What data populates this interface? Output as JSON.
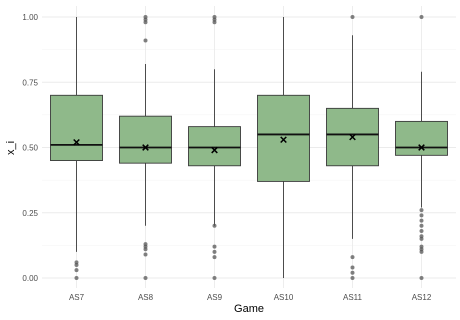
{
  "chart_data": {
    "type": "boxplot",
    "title": "",
    "xlabel": "Game",
    "ylabel": "x_i",
    "ylim": [
      0,
      1
    ],
    "yticks": [
      "0.00",
      "0.25",
      "0.50",
      "0.75",
      "1.00"
    ],
    "categories": [
      "AS7",
      "AS8",
      "AS9",
      "AS10",
      "AS11",
      "AS12"
    ],
    "grid": true,
    "colors": {
      "box_fill": "#8fb98a",
      "box_stroke": "#3a3a3a",
      "median": "#111111",
      "outlier": "#555555",
      "grid": "#ebebeb"
    },
    "boxes": [
      {
        "category": "AS7",
        "min": 0.1,
        "q1": 0.45,
        "median": 0.51,
        "q3": 0.7,
        "max": 1.0,
        "mean": 0.52,
        "outliers": [
          0.0,
          0.03,
          0.05,
          0.06
        ]
      },
      {
        "category": "AS8",
        "min": 0.2,
        "q1": 0.44,
        "median": 0.5,
        "q3": 0.62,
        "max": 0.82,
        "mean": 0.5,
        "outliers": [
          0.0,
          0.09,
          0.11,
          0.12,
          0.13,
          0.91,
          0.98,
          0.99,
          1.0
        ]
      },
      {
        "category": "AS9",
        "min": 0.2,
        "q1": 0.43,
        "median": 0.5,
        "q3": 0.58,
        "max": 0.8,
        "mean": 0.49,
        "outliers": [
          0.0,
          0.08,
          0.1,
          0.12,
          0.2,
          0.98,
          0.99,
          1.0
        ]
      },
      {
        "category": "AS10",
        "min": 0.0,
        "q1": 0.37,
        "median": 0.55,
        "q3": 0.7,
        "max": 1.0,
        "mean": 0.53,
        "outliers": []
      },
      {
        "category": "AS11",
        "min": 0.15,
        "q1": 0.43,
        "median": 0.55,
        "q3": 0.65,
        "max": 0.93,
        "mean": 0.54,
        "outliers": [
          0.0,
          0.02,
          0.04,
          0.08,
          1.0
        ]
      },
      {
        "category": "AS12",
        "min": 0.27,
        "q1": 0.47,
        "median": 0.5,
        "q3": 0.6,
        "max": 0.79,
        "mean": 0.5,
        "outliers": [
          0.0,
          0.1,
          0.11,
          0.12,
          0.15,
          0.16,
          0.18,
          0.2,
          0.22,
          0.24,
          0.26,
          1.0
        ]
      }
    ]
  }
}
